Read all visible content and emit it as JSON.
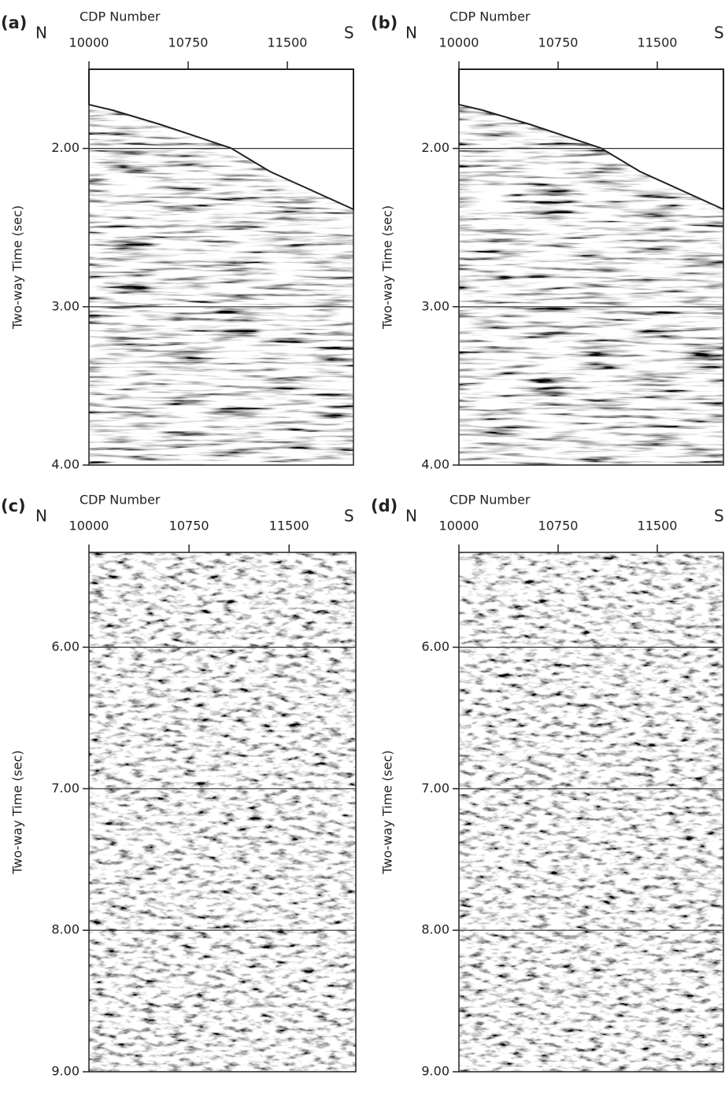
{
  "chart_data": [
    {
      "type": "seismic-section",
      "panel": "(a)",
      "x_label": "CDP Number",
      "y_label": "Two-way Time (sec)",
      "left_label": "N",
      "right_label": "S",
      "xlim": [
        10000,
        12000
      ],
      "xticks": [
        10000,
        10750,
        11500
      ],
      "ylim": [
        4,
        1.5
      ],
      "yticks": [
        {
          "value": 2,
          "label": "2.00"
        },
        {
          "value": 3,
          "label": "3.00"
        },
        {
          "value": 4,
          "label": "4.00"
        }
      ],
      "grid": true
    },
    {
      "type": "seismic-section",
      "panel": "(b)",
      "x_label": "CDP Number",
      "y_label": "Two-way Time (sec)",
      "left_label": "N",
      "right_label": "S",
      "xlim": [
        10000,
        12000
      ],
      "xticks": [
        10000,
        10750,
        11500
      ],
      "ylim": [
        4,
        1.5
      ],
      "yticks": [
        {
          "value": 2,
          "label": "2.00"
        },
        {
          "value": 3,
          "label": "3.00"
        },
        {
          "value": 4,
          "label": "4.00"
        }
      ],
      "grid": true
    },
    {
      "type": "seismic-section",
      "panel": "(c)",
      "x_label": "CDP Number",
      "y_label": "Two-way Time (sec)",
      "left_label": "N",
      "right_label": "S",
      "xlim": [
        10000,
        12000
      ],
      "xticks": [
        10000,
        10750,
        11500
      ],
      "ylim": [
        9,
        5.33
      ],
      "yticks": [
        {
          "value": 6,
          "label": "6.00"
        },
        {
          "value": 7,
          "label": "7.00"
        },
        {
          "value": 8,
          "label": "8.00"
        },
        {
          "value": 9,
          "label": "9.00"
        }
      ],
      "grid": true
    },
    {
      "type": "seismic-section",
      "panel": "(d)",
      "x_label": "CDP Number",
      "y_label": "Two-way Time (sec)",
      "left_label": "N",
      "right_label": "S",
      "xlim": [
        10000,
        12000
      ],
      "xticks": [
        10000,
        10750,
        11500
      ],
      "ylim": [
        9,
        5.33
      ],
      "yticks": [
        {
          "value": 6,
          "label": "6.00"
        },
        {
          "value": 7,
          "label": "7.00"
        },
        {
          "value": 8,
          "label": "8.00"
        },
        {
          "value": 9,
          "label": "9.00"
        }
      ],
      "grid": true
    }
  ]
}
